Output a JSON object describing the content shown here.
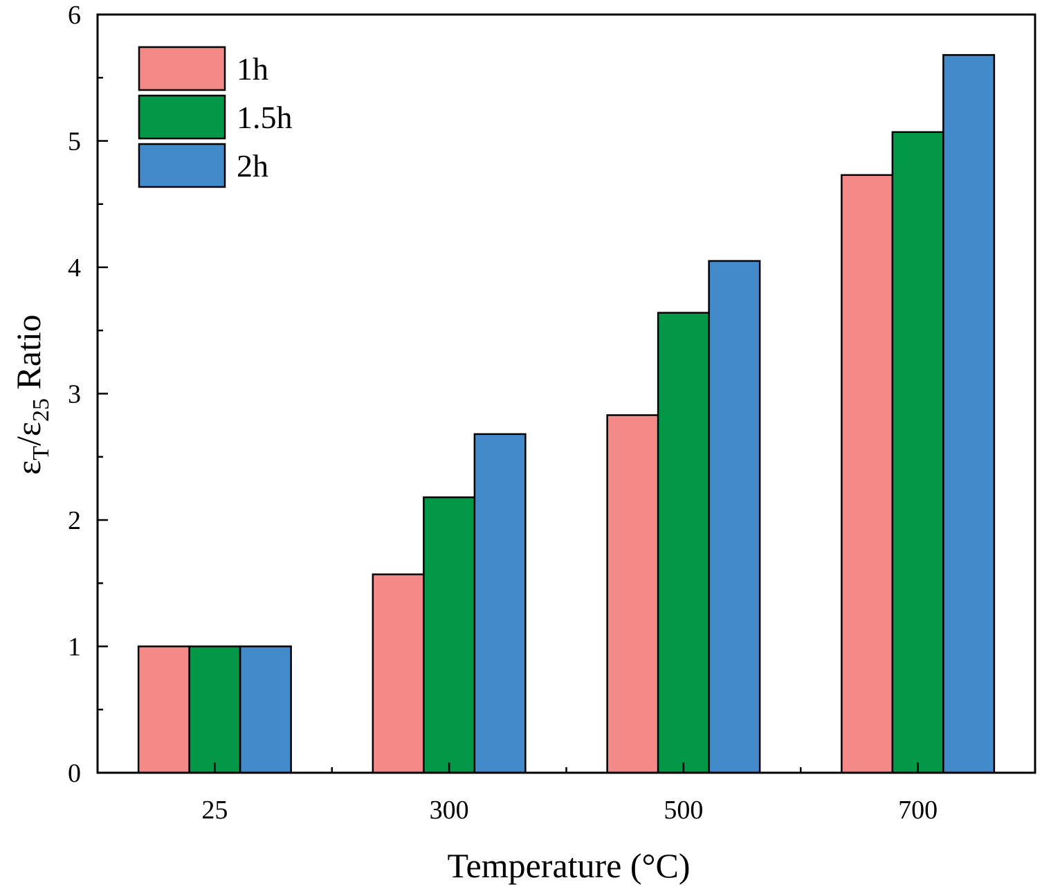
{
  "chart_data": {
    "type": "bar",
    "title": "",
    "xlabel": "Temperature (°C)",
    "ylabel": {
      "eps": "ε",
      "sub_num": "T",
      "slash": "/",
      "sub_den": "25",
      "suffix": " Ratio"
    },
    "categories": [
      "25",
      "300",
      "500",
      "700"
    ],
    "series": [
      {
        "name": "1h",
        "color": "#F48A87",
        "values": [
          1.0,
          1.57,
          2.83,
          4.73
        ]
      },
      {
        "name": "1.5h",
        "color": "#039748",
        "values": [
          1.0,
          2.18,
          3.64,
          5.07
        ]
      },
      {
        "name": "2h",
        "color": "#428ACA",
        "values": [
          1.0,
          2.68,
          4.05,
          5.68
        ]
      }
    ],
    "ylim": [
      0,
      6
    ],
    "yticks": [
      "0",
      "1",
      "2",
      "3",
      "4",
      "5",
      "6"
    ],
    "grid": false,
    "legend_position": "top-left"
  }
}
